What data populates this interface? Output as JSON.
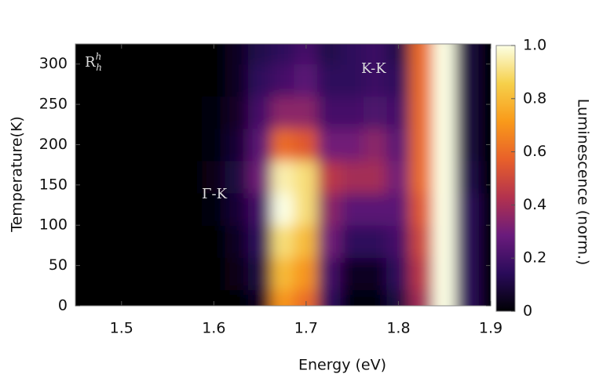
{
  "chart_data": {
    "type": "heatmap",
    "xlabel": "Energy (eV)",
    "ylabel": "Temperature(K)",
    "colorbar_label": "Luminescence (norm.)",
    "panel_label": {
      "base": "R",
      "sup": "h",
      "sub": "h"
    },
    "annotations": [
      "K-K",
      "Γ-K"
    ],
    "x": [
      1.45,
      1.475,
      1.5,
      1.525,
      1.55,
      1.575,
      1.6,
      1.625,
      1.65,
      1.675,
      1.7,
      1.725,
      1.75,
      1.775,
      1.8,
      1.825,
      1.85,
      1.875,
      1.9
    ],
    "y": [
      0,
      40,
      80,
      120,
      160,
      200,
      240,
      280,
      320
    ],
    "z": [
      [
        0,
        0,
        0,
        0,
        0,
        0,
        0,
        0,
        0.05,
        0.7,
        0.6,
        0.15,
        0.02,
        0.02,
        0.1,
        0.4,
        1,
        0.15,
        0
      ],
      [
        0,
        0,
        0,
        0,
        0,
        0,
        0,
        0.03,
        0.1,
        0.8,
        0.7,
        0.2,
        0.05,
        0.05,
        0.15,
        0.45,
        1,
        0.15,
        0
      ],
      [
        0,
        0,
        0,
        0,
        0,
        0,
        0,
        0.05,
        0.15,
        0.9,
        0.8,
        0.3,
        0.15,
        0.15,
        0.2,
        0.5,
        1,
        0.15,
        0
      ],
      [
        0,
        0,
        0,
        0,
        0,
        0,
        0.02,
        0.08,
        0.2,
        1,
        0.9,
        0.35,
        0.25,
        0.25,
        0.25,
        0.55,
        1,
        0.15,
        0.02
      ],
      [
        0,
        0,
        0,
        0,
        0,
        0,
        0.03,
        0.1,
        0.3,
        0.95,
        0.9,
        0.45,
        0.4,
        0.4,
        0.3,
        0.6,
        1,
        0.12,
        0
      ],
      [
        0,
        0,
        0,
        0,
        0,
        0,
        0.02,
        0.08,
        0.25,
        0.6,
        0.55,
        0.3,
        0.3,
        0.35,
        0.25,
        0.6,
        1,
        0.1,
        0
      ],
      [
        0,
        0,
        0,
        0,
        0,
        0,
        0.02,
        0.06,
        0.2,
        0.35,
        0.35,
        0.2,
        0.2,
        0.22,
        0.2,
        0.6,
        1,
        0.1,
        0
      ],
      [
        0,
        0,
        0,
        0,
        0,
        0,
        0,
        0.05,
        0.15,
        0.2,
        0.25,
        0.15,
        0.15,
        0.18,
        0.15,
        0.6,
        1,
        0.1,
        0
      ],
      [
        0,
        0,
        0,
        0,
        0,
        0,
        0,
        0.05,
        0.12,
        0.15,
        0.2,
        0.12,
        0.15,
        0.18,
        0.12,
        0.6,
        1,
        0.1,
        0
      ]
    ],
    "xlim": [
      1.45,
      1.9
    ],
    "ylim": [
      0,
      325
    ],
    "zlim": [
      0,
      1
    ],
    "xticks": [
      1.5,
      1.6,
      1.7,
      1.8,
      1.9
    ],
    "yticks": [
      0,
      50,
      100,
      150,
      200,
      250,
      300
    ],
    "zticks": [
      0,
      0.2,
      0.4,
      0.6,
      0.8,
      {
        "value": 1,
        "label": "1.0"
      }
    ],
    "colormap": [
      "#000004",
      "#2a0b5a",
      "#6a1b7c",
      "#b3324e",
      "#e8602a",
      "#f99a1a",
      "#f6d04a",
      "#fcffe4"
    ]
  }
}
